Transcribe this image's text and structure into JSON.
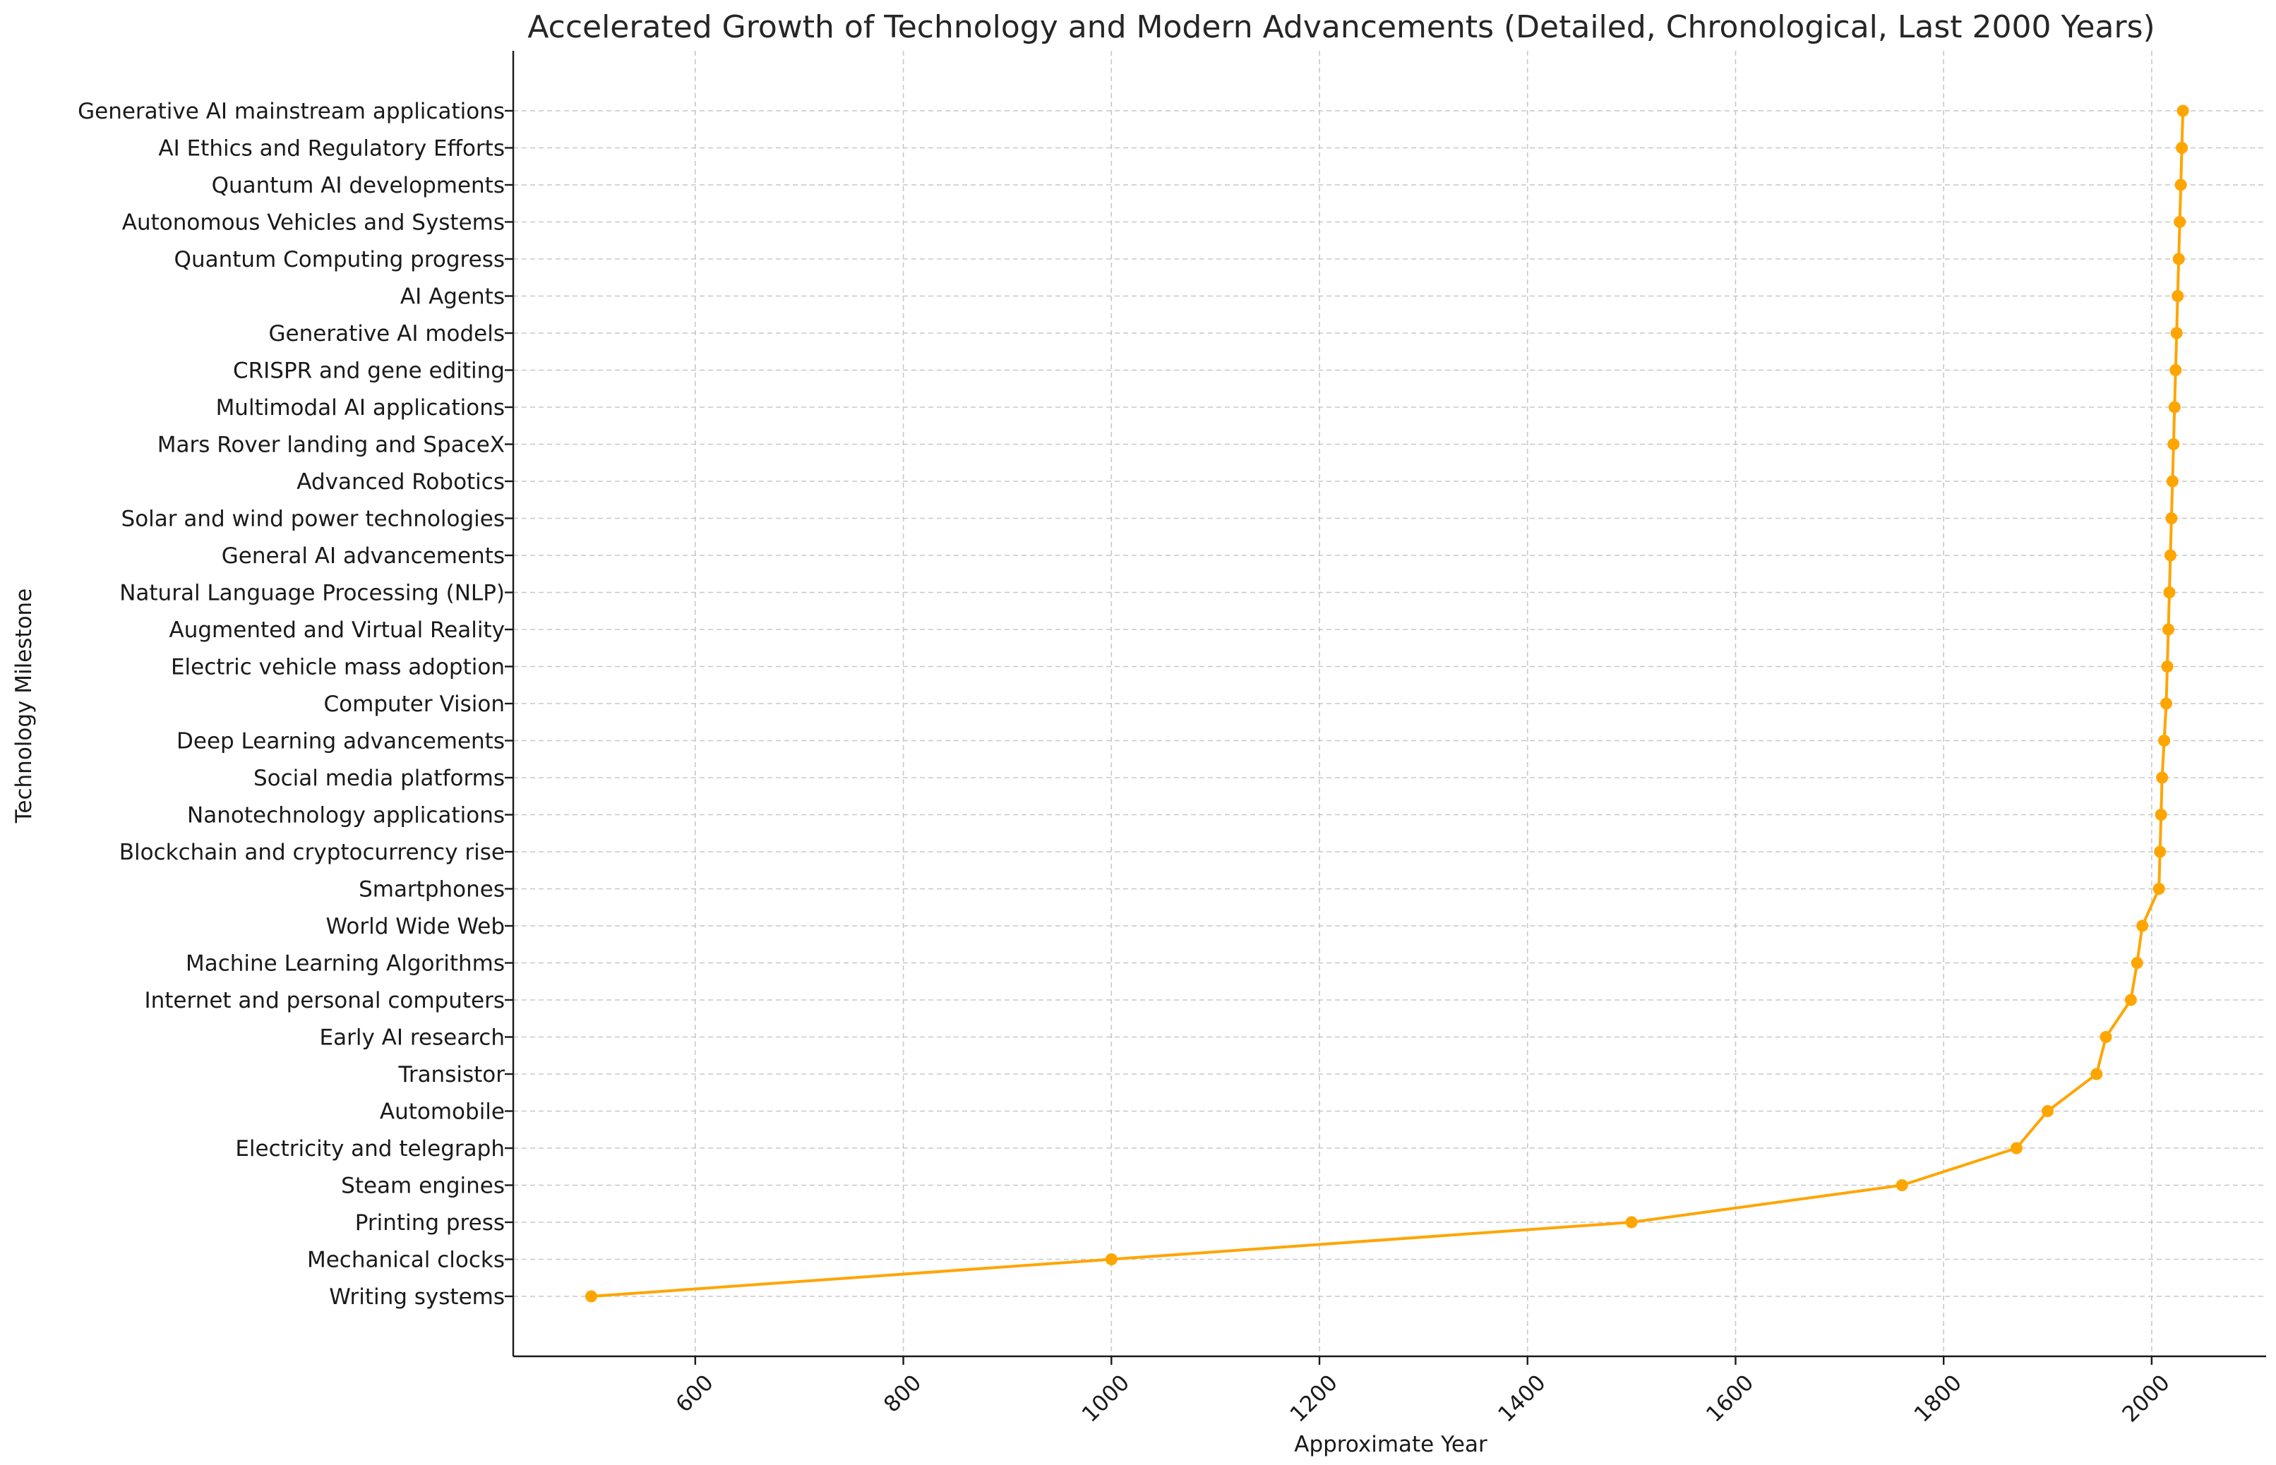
{
  "chart_data": {
    "type": "line",
    "title": "Accelerated Growth of Technology and Modern Advancements (Detailed, Chronological, Last 2000 Years)",
    "xlabel": "Approximate Year",
    "ylabel": "Technology Milestone",
    "xlim": [
      425,
      2110
    ],
    "xticks": [
      600,
      800,
      1000,
      1200,
      1400,
      1600,
      1800,
      2000
    ],
    "grid": true,
    "color": "#FFA500",
    "series": [
      {
        "points": [
          {
            "label": "Writing systems",
            "year": 500
          },
          {
            "label": "Mechanical clocks",
            "year": 1000
          },
          {
            "label": "Printing press",
            "year": 1500
          },
          {
            "label": "Steam engines",
            "year": 1760
          },
          {
            "label": "Electricity and telegraph",
            "year": 1870
          },
          {
            "label": "Automobile",
            "year": 1900
          },
          {
            "label": "Transistor",
            "year": 1947
          },
          {
            "label": "Early AI research",
            "year": 1956
          },
          {
            "label": "Internet and personal computers",
            "year": 1980
          },
          {
            "label": "Machine Learning Algorithms",
            "year": 1986
          },
          {
            "label": "World Wide Web",
            "year": 1991
          },
          {
            "label": "Smartphones",
            "year": 2007
          },
          {
            "label": "Blockchain and cryptocurrency rise",
            "year": 2008
          },
          {
            "label": "Nanotechnology applications",
            "year": 2009
          },
          {
            "label": "Social media platforms",
            "year": 2010
          },
          {
            "label": "Deep Learning advancements",
            "year": 2012
          },
          {
            "label": "Computer Vision",
            "year": 2014
          },
          {
            "label": "Electric vehicle mass adoption",
            "year": 2015
          },
          {
            "label": "Augmented and Virtual Reality",
            "year": 2016
          },
          {
            "label": "Natural Language Processing (NLP)",
            "year": 2017
          },
          {
            "label": "General AI advancements",
            "year": 2018
          },
          {
            "label": "Solar and wind power technologies",
            "year": 2019
          },
          {
            "label": "Advanced Robotics",
            "year": 2020
          },
          {
            "label": "Mars Rover landing and SpaceX",
            "year": 2021
          },
          {
            "label": "Multimodal AI applications",
            "year": 2022
          },
          {
            "label": "CRISPR and gene editing",
            "year": 2023
          },
          {
            "label": "Generative AI models",
            "year": 2024
          },
          {
            "label": "AI Agents",
            "year": 2025
          },
          {
            "label": "Quantum Computing progress",
            "year": 2026
          },
          {
            "label": "Autonomous Vehicles and Systems",
            "year": 2027
          },
          {
            "label": "Quantum AI developments",
            "year": 2028
          },
          {
            "label": "AI Ethics and Regulatory Efforts",
            "year": 2029
          },
          {
            "label": "Generative AI mainstream applications",
            "year": 2030
          }
        ]
      }
    ]
  }
}
